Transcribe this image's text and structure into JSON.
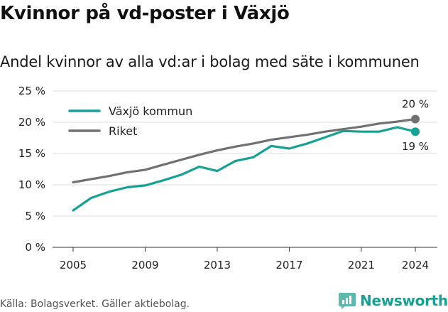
{
  "header": {
    "title": "Kvinnor på vd-poster i Växjö",
    "subtitle": "Andel kvinnor av alla vd:ar i bolag med säte i kommunen"
  },
  "footer": {
    "source": "Källa: Bolagsverket. Gäller aktiebolag.",
    "brand": "Newsworthy"
  },
  "colors": {
    "vaxjo": "#16a195",
    "riket": "#717073",
    "grid": "#dddddd",
    "brand": "#16a195"
  },
  "chart_data": {
    "type": "line",
    "title": "Kvinnor på vd-poster i Växjö",
    "subtitle": "Andel kvinnor av alla vd:ar i bolag med säte i kommunen",
    "x": [
      2005,
      2006,
      2007,
      2008,
      2009,
      2010,
      2011,
      2012,
      2013,
      2014,
      2015,
      2016,
      2017,
      2018,
      2019,
      2020,
      2021,
      2022,
      2023,
      2024
    ],
    "x_ticks": [
      "2005",
      "2009",
      "2013",
      "2017",
      "2021",
      "2024"
    ],
    "y_ticks": [
      "0 %",
      "5 %",
      "10 %",
      "15 %",
      "20 %",
      "25 %"
    ],
    "ylim": [
      0,
      25
    ],
    "grid": true,
    "legend_position": "top-left",
    "series": [
      {
        "name": "Växjö kommun",
        "color": "#16a195",
        "values": [
          5.9,
          7.9,
          8.9,
          9.6,
          9.9,
          10.7,
          11.6,
          12.9,
          12.2,
          13.8,
          14.4,
          16.2,
          15.8,
          16.6,
          17.6,
          18.6,
          18.5,
          18.5,
          19.2,
          18.5
        ],
        "end_label": "19 %"
      },
      {
        "name": "Riket",
        "color": "#717073",
        "values": [
          10.4,
          10.9,
          11.4,
          12.0,
          12.4,
          13.2,
          14.0,
          14.8,
          15.5,
          16.1,
          16.6,
          17.2,
          17.6,
          18.0,
          18.5,
          18.9,
          19.3,
          19.8,
          20.1,
          20.5
        ],
        "end_label": "20 %"
      }
    ]
  }
}
